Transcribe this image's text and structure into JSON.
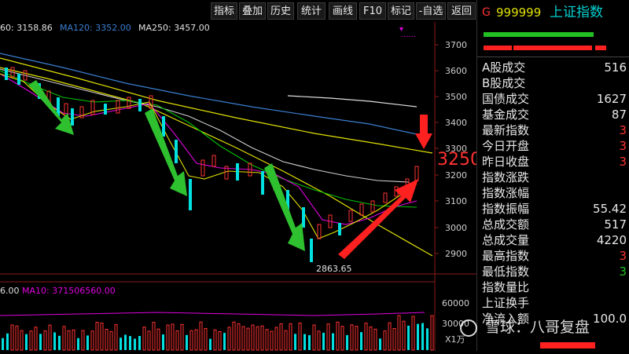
{
  "toolbar": {
    "buttons": [
      "指标",
      "叠加",
      "历史",
      "统计",
      "画线",
      "F10",
      "标记",
      "-自选",
      "返回"
    ]
  },
  "ma_legend": {
    "ma60": "60: 3158.86",
    "ma120": "MA120: 3352.00",
    "ma250": "MA250: 3457.00"
  },
  "vol_legend": {
    "vol": "6.00",
    "ma10": "MA10: 371506560.00"
  },
  "y_axis_labels": [
    "3700",
    "3600",
    "3500",
    "3400",
    "3300",
    "3200",
    "3100",
    "3000",
    "2900"
  ],
  "vol_axis_labels": [
    "60000",
    "30000"
  ],
  "vol_unit": "X1万",
  "annotations": {
    "low_label": "2863.65",
    "target_label": "3250"
  },
  "colors": {
    "up": "#ff3232",
    "down": "#00e0e0",
    "ma_yellow": "#e0e000",
    "ma_white": "#e0e0e0",
    "ma_magenta": "#e000e0",
    "ma_green": "#00c000",
    "ma_blue": "#3a7fd0",
    "arrow_green": "#2ec02e",
    "arrow_red": "#ff2020"
  },
  "panel": {
    "prefix": "G",
    "code": "999999",
    "name": "上证指数",
    "rows": [
      {
        "label": "A股成交",
        "value": "516"
      },
      {
        "label": "B股成交",
        "value": ""
      },
      {
        "label": "国债成交",
        "value": "1627"
      },
      {
        "label": "基金成交",
        "value": "87"
      },
      {
        "label": "最新指数",
        "value": "3"
      },
      {
        "label": "今日开盘",
        "value": "3"
      },
      {
        "label": "昨日收盘",
        "value": "3"
      },
      {
        "label": "指数涨跌",
        "value": ""
      },
      {
        "label": "指数涨幅",
        "value": ""
      },
      {
        "label": "指数振幅",
        "value": "55.42"
      },
      {
        "label": "总成交额",
        "value": "517"
      },
      {
        "label": "总成交量",
        "value": "4220"
      },
      {
        "label": "最高指数",
        "value": "3"
      },
      {
        "label": "最低指数",
        "value": "3"
      },
      {
        "label": "指数量比",
        "value": ""
      },
      {
        "label": "上证换手",
        "value": ""
      },
      {
        "label": "净流入额",
        "value": "100.0"
      }
    ]
  },
  "watermark": "雪球：八哥复盘"
}
